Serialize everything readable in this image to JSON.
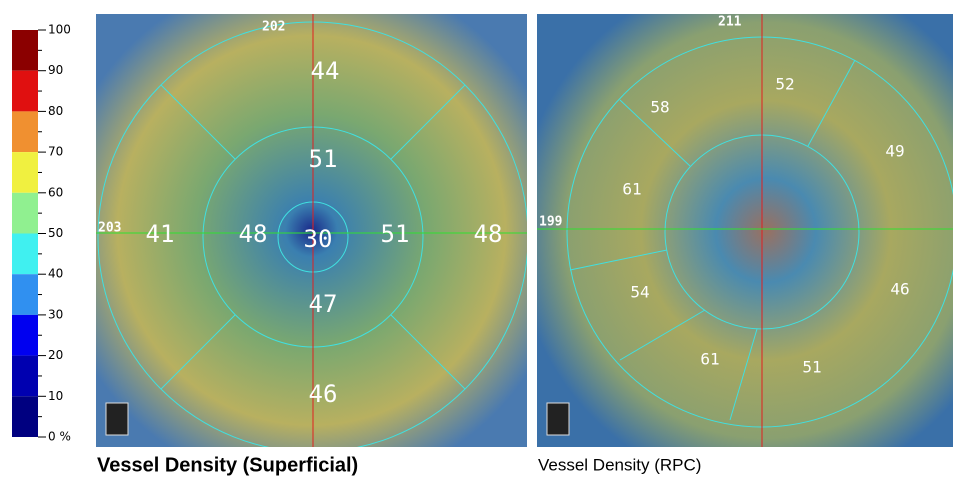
{
  "color_scale": {
    "labels": [
      "100",
      "90",
      "80",
      "70",
      "60",
      "50",
      "40",
      "30",
      "20",
      "10",
      "0 %"
    ]
  },
  "superficial": {
    "scan_top": "202",
    "scan_left": "203",
    "sectors": [
      44,
      51,
      41,
      48,
      30,
      51,
      48,
      47,
      46
    ],
    "caption": "Vessel Density (Superficial)"
  },
  "rpc": {
    "scan_top": "211",
    "scan_left": "199",
    "sectors": [
      52,
      58,
      49,
      61,
      54,
      46,
      61,
      51
    ],
    "caption": "Vessel Density (RPC)"
  }
}
